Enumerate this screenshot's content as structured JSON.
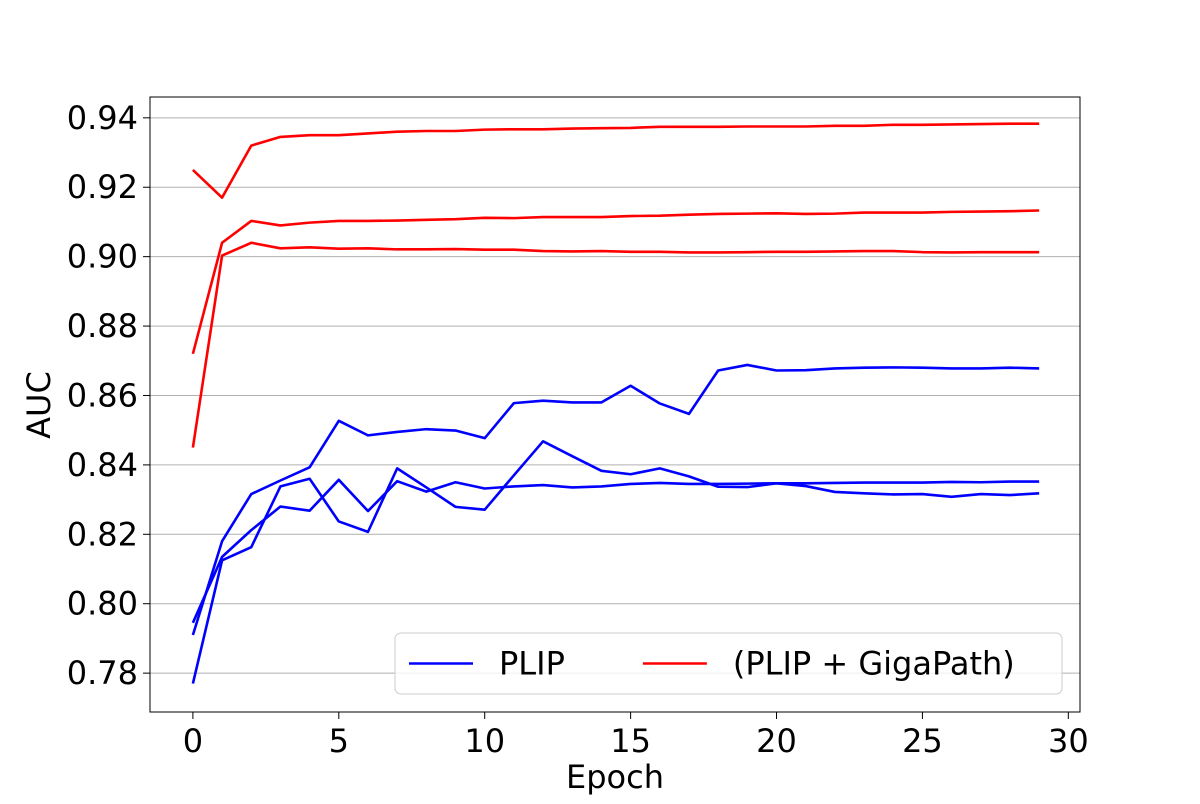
{
  "chart_data": {
    "type": "line",
    "xlabel": "Epoch",
    "ylabel": "AUC",
    "x": [
      0,
      1,
      2,
      3,
      4,
      5,
      6,
      7,
      8,
      9,
      10,
      11,
      12,
      13,
      14,
      15,
      16,
      17,
      18,
      19,
      20,
      21,
      22,
      23,
      24,
      25,
      26,
      27,
      28,
      29
    ],
    "series": [
      {
        "name": "PLIP",
        "color": "#0000ff",
        "runs": [
          [
            0.791,
            0.818,
            0.8316,
            0.8355,
            0.8393,
            0.8527,
            0.8485,
            0.8495,
            0.8503,
            0.8499,
            0.8477,
            0.8578,
            0.8585,
            0.858,
            0.858,
            0.8628,
            0.8577,
            0.8547,
            0.8672,
            0.8688,
            0.8672,
            0.8673,
            0.8678,
            0.868,
            0.8681,
            0.868,
            0.8678,
            0.8678,
            0.868,
            0.8678
          ],
          [
            0.777,
            0.8125,
            0.8163,
            0.8338,
            0.836,
            0.8237,
            0.8207,
            0.839,
            0.8335,
            0.8279,
            0.8271,
            0.837,
            0.8468,
            0.8425,
            0.8383,
            0.8373,
            0.839,
            0.8367,
            0.8337,
            0.8336,
            0.8347,
            0.8339,
            0.8322,
            0.8318,
            0.8315,
            0.8316,
            0.8308,
            0.8316,
            0.8313,
            0.8318
          ],
          [
            0.7945,
            0.8135,
            0.8212,
            0.828,
            0.8268,
            0.8357,
            0.8267,
            0.8353,
            0.8323,
            0.835,
            0.8332,
            0.8338,
            0.8342,
            0.8335,
            0.8338,
            0.8345,
            0.8348,
            0.8345,
            0.8345,
            0.8346,
            0.8347,
            0.8347,
            0.8348,
            0.8349,
            0.8349,
            0.8349,
            0.8351,
            0.835,
            0.8352,
            0.8352
          ]
        ]
      },
      {
        "name": "(PLIP + GigaPath)",
        "color": "#ff0000",
        "runs": [
          [
            0.925,
            0.917,
            0.932,
            0.9345,
            0.935,
            0.935,
            0.9355,
            0.936,
            0.9362,
            0.9362,
            0.9366,
            0.9367,
            0.9367,
            0.9369,
            0.937,
            0.9371,
            0.9374,
            0.9374,
            0.9374,
            0.9375,
            0.9375,
            0.9375,
            0.9377,
            0.9377,
            0.938,
            0.938,
            0.9381,
            0.9382,
            0.9383,
            0.9383
          ],
          [
            0.872,
            0.904,
            0.9103,
            0.909,
            0.9098,
            0.9103,
            0.9103,
            0.9104,
            0.9106,
            0.9108,
            0.9112,
            0.9111,
            0.9114,
            0.9114,
            0.9114,
            0.9117,
            0.9118,
            0.9121,
            0.9123,
            0.9124,
            0.9125,
            0.9123,
            0.9124,
            0.9127,
            0.9127,
            0.9127,
            0.9129,
            0.913,
            0.9131,
            0.9133
          ],
          [
            0.845,
            0.9003,
            0.904,
            0.9024,
            0.9027,
            0.9023,
            0.9024,
            0.9021,
            0.9021,
            0.9022,
            0.902,
            0.902,
            0.9016,
            0.9015,
            0.9016,
            0.9014,
            0.9014,
            0.9012,
            0.9012,
            0.9013,
            0.9014,
            0.9014,
            0.9015,
            0.9016,
            0.9016,
            0.9013,
            0.9012,
            0.9013,
            0.9013,
            0.9013
          ]
        ]
      }
    ],
    "xlim": [
      -1.47,
      30.4
    ],
    "xticks": [
      0,
      5,
      10,
      15,
      20,
      25,
      30
    ],
    "ylim": [
      0.7688,
      0.946
    ],
    "yticks": [
      0.78,
      {
        "value": 0.8,
        "label": "0.80"
      },
      0.82,
      0.84,
      0.86,
      0.88,
      {
        "value": 0.9,
        "label": "0.90"
      },
      0.92,
      0.94
    ],
    "grid": true,
    "legend": "lower right"
  }
}
